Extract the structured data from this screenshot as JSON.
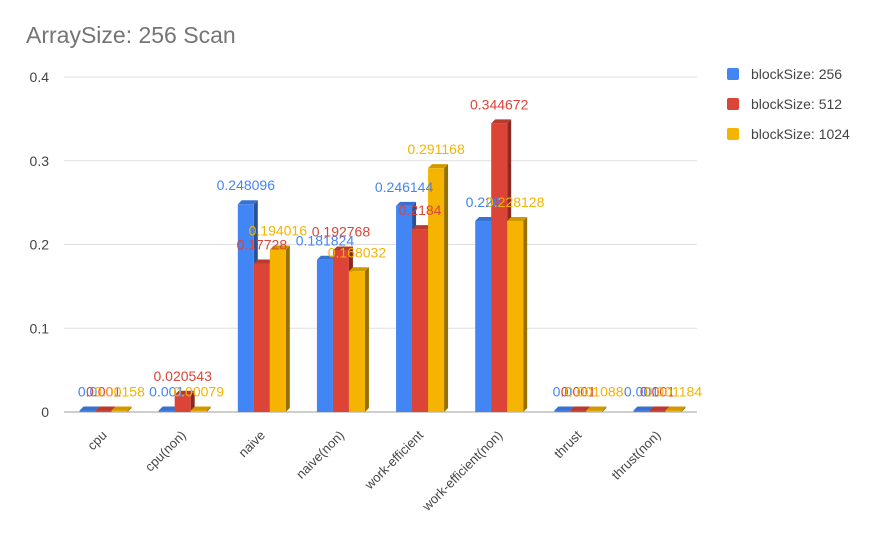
{
  "chart_data": {
    "type": "bar",
    "title": "ArraySize: 256 Scan",
    "xlabel": "",
    "ylabel": "",
    "ylim": [
      0,
      0.4
    ],
    "yticks": [
      "0",
      "0.1",
      "0.2",
      "0.3",
      "0.4"
    ],
    "categories": [
      "cpu",
      "cpu(non)",
      "naive",
      "naive(non)",
      "work-efficient",
      "work-efficient(non)",
      "thrust",
      "thrust(non)"
    ],
    "series": [
      {
        "name": "blockSize: 256",
        "color": "#4285f4",
        "values": [
          0.0,
          0.001,
          0.248096,
          0.181824,
          0.246144,
          0.228,
          0.0,
          0.001
        ],
        "labels": [
          "0.0",
          "0.001",
          "0.248096",
          "0.181824",
          "0.246144",
          "0.228",
          "0.0",
          "0.001"
        ]
      },
      {
        "name": "blockSize: 512",
        "color": "#db4437",
        "values": [
          0.001,
          0.020543,
          0.17728,
          0.192768,
          0.2184,
          0.344672,
          0.001,
          0.001
        ],
        "labels": [
          "0.001",
          "0.020543",
          "0.17728",
          "0.192768",
          "0.2184",
          "0.344672",
          "0.001",
          "0.001"
        ]
      },
      {
        "name": "blockSize: 1024",
        "color": "#f4b400",
        "values": [
          0.00158,
          0.00079,
          0.194016,
          0.168032,
          0.291168,
          0.228128,
          0.001088,
          0.001184
        ],
        "labels": [
          "0.00158",
          "0.00079",
          "0.194016",
          "0.168032",
          "0.291168",
          "0.228128",
          "0.001088",
          "0.001184"
        ]
      }
    ],
    "legend_position": "right",
    "grid": true
  }
}
